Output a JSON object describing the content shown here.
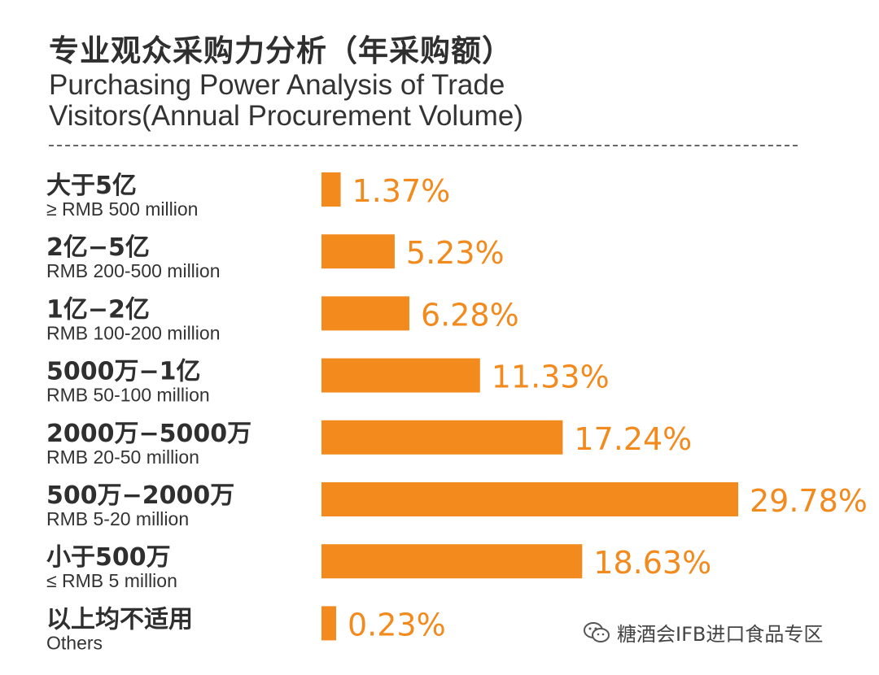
{
  "title_cn": "专业观众采购力分析（年采购额）",
  "title_en": "Purchasing Power Analysis of Trade Visitors(Annual Procurement Volume)",
  "watermark": "糖酒会IFB进口食品专区",
  "colors": {
    "bar": "#f28a1d",
    "value_text": "#f28a1d",
    "label_cn": "#2f2f2f",
    "label_en": "#333333"
  },
  "chart_data": {
    "type": "bar",
    "orientation": "horizontal",
    "title": "专业观众采购力分析（年采购额）",
    "subtitle": "Purchasing Power Analysis of Trade Visitors(Annual Procurement Volume)",
    "categories": [
      {
        "cn": "大于5亿",
        "en": "≥ RMB 500 million"
      },
      {
        "cn": "2亿−5亿",
        "en": "RMB 200-500 million"
      },
      {
        "cn": "1亿−2亿",
        "en": "RMB 100-200 million"
      },
      {
        "cn": "5000万−1亿",
        "en": "RMB 50-100 million"
      },
      {
        "cn": "2000万−5000万",
        "en": "RMB 20-50 million"
      },
      {
        "cn": "500万−2000万",
        "en": "RMB 5-20 million"
      },
      {
        "cn": "小于500万",
        "en": "≤ RMB 5 million"
      },
      {
        "cn": "以上均不适用",
        "en": "Others"
      }
    ],
    "values": [
      1.37,
      5.23,
      6.28,
      11.33,
      17.24,
      29.78,
      18.63,
      0.23
    ],
    "value_labels": [
      "1.37%",
      "5.23%",
      "6.28%",
      "11.33%",
      "17.24%",
      "29.78%",
      "18.63%",
      "0.23%"
    ],
    "unit": "%",
    "xlim": [
      0,
      29.78
    ],
    "grid": false,
    "legend": "none"
  }
}
